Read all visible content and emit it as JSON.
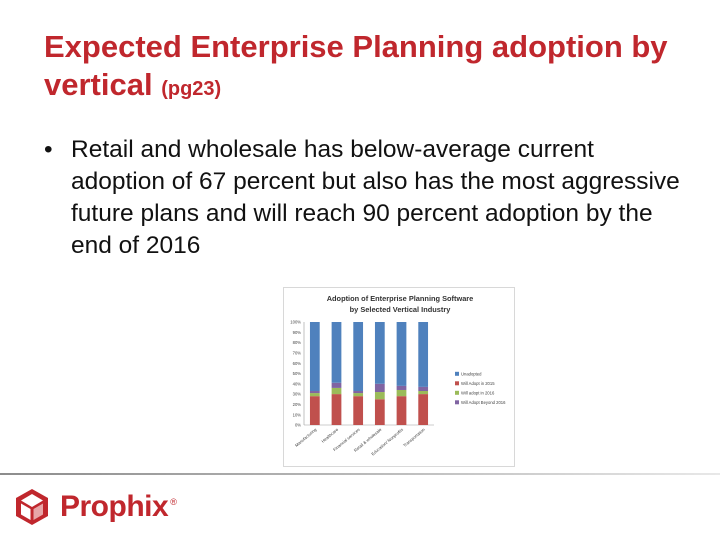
{
  "slide": {
    "title_main": "Expected Enterprise Planning adoption by vertical",
    "title_suffix": "(pg23)",
    "bullet_marker": "•",
    "bullet_text": "Retail and wholesale has below-average current adoption of 67 percent but also has the most aggressive future plans and will reach 90 percent adoption by the end of 2016"
  },
  "logo": {
    "name": "Prophix",
    "reg_mark": "®",
    "icon": "prophix-cube-icon",
    "color": "#c0272d"
  },
  "chart_data": {
    "type": "bar",
    "stacked": true,
    "title": "Adoption of Enterprise Planning Software",
    "subtitle": "by Selected Vertical Industry",
    "categories": [
      "Manufacturing",
      "Healthcare",
      "Financial services",
      "Retail & wholesale",
      "Education/ Nonprofits",
      "Transportation"
    ],
    "series": [
      {
        "name": "",
        "color": "#c0504d",
        "values": [
          28,
          30,
          28,
          25,
          28,
          30
        ]
      },
      {
        "name": "",
        "color": "#9bbb59",
        "values": [
          3,
          6,
          3,
          7,
          6,
          3
        ]
      },
      {
        "name": "",
        "color": "#8064a2",
        "values": [
          2,
          5,
          2,
          8,
          4,
          4
        ]
      },
      {
        "name": "",
        "color": "#4f81bd",
        "values": [
          67,
          59,
          67,
          60,
          62,
          63
        ]
      }
    ],
    "legend": [
      "Unadopted",
      "Will Adopt in 2015",
      "Will adopt in 2016",
      "Will Adopt Beyond 2016"
    ],
    "legend_colors": [
      "#4f81bd",
      "#c0504d",
      "#9bbb59",
      "#8064a2"
    ],
    "legend_position": "right",
    "ylim": [
      0,
      100
    ],
    "yticks": [
      "0%",
      "10%",
      "20%",
      "30%",
      "40%",
      "50%",
      "60%",
      "70%",
      "80%",
      "90%",
      "100%"
    ],
    "grid": false
  }
}
